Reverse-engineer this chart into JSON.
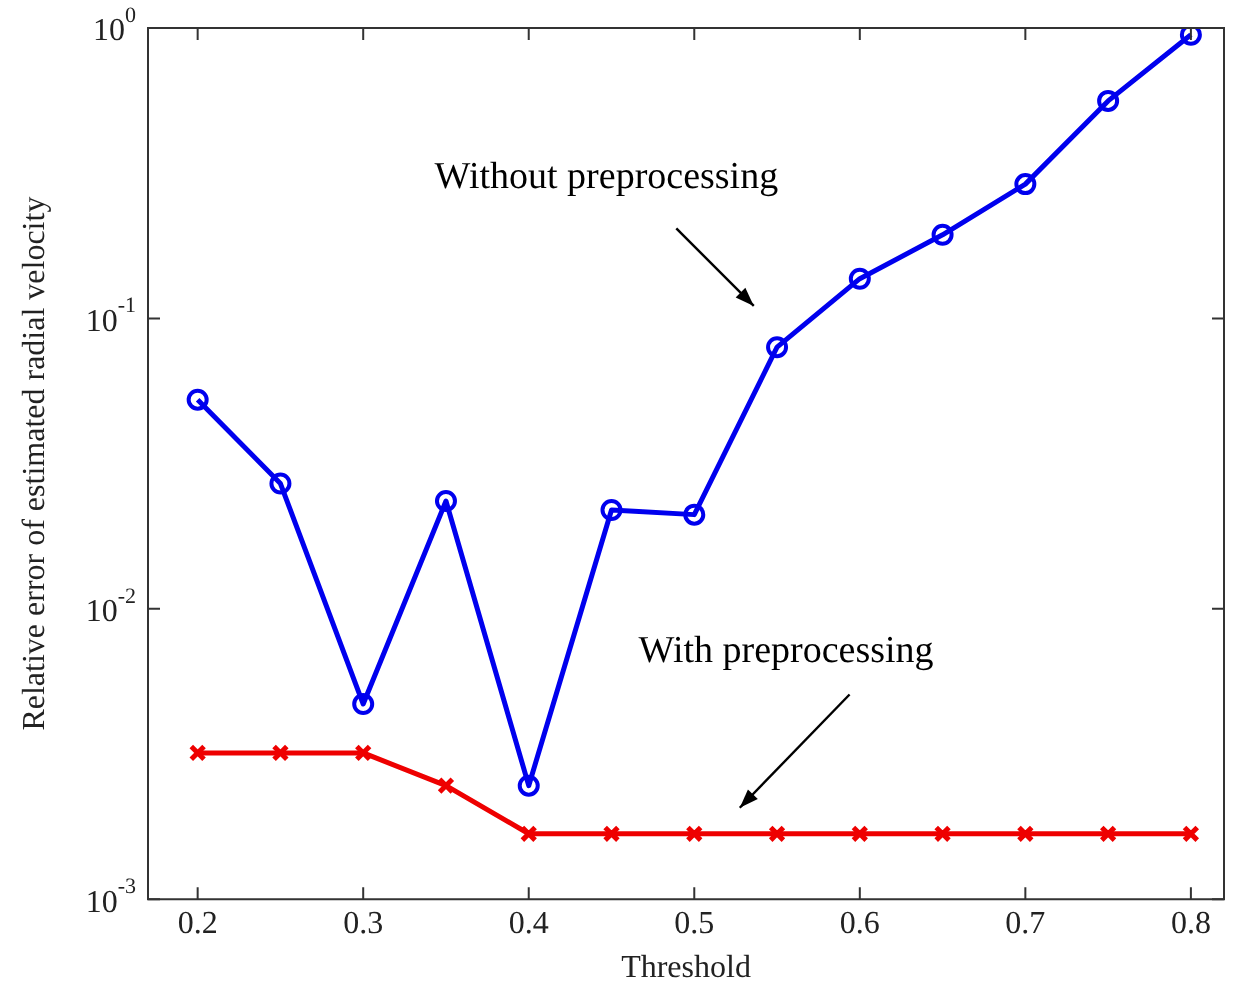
{
  "chart_data": {
    "type": "line",
    "xlabel": "Threshold",
    "ylabel": "Relative error of estimated radial velocity",
    "x": [
      0.2,
      0.25,
      0.3,
      0.35,
      0.4,
      0.45,
      0.5,
      0.55,
      0.6,
      0.65,
      0.7,
      0.75,
      0.8
    ],
    "series": [
      {
        "color": "#0000ee",
        "marker": "circle",
        "values": [
          0.0525,
          0.027,
          0.0047,
          0.0235,
          0.00246,
          0.0219,
          0.0211,
          0.0796,
          0.137,
          0.194,
          0.29,
          0.561,
          0.948
        ]
      },
      {
        "color": "#ee0000",
        "marker": "cross",
        "values": [
          0.00319,
          0.00319,
          0.00319,
          0.00246,
          0.00168,
          0.00168,
          0.00168,
          0.00168,
          0.00168,
          0.00168,
          0.00168,
          0.00168,
          0.00168
        ]
      }
    ],
    "log": "y",
    "xlim": [
      0.17,
      0.82
    ],
    "xticks": [
      0.2,
      0.3,
      0.4,
      0.5,
      0.6,
      0.7,
      0.8
    ],
    "ylim": [
      0.001,
      1
    ],
    "yticks": [
      {
        "value": 0.001,
        "label": "10$^{-3}$"
      },
      {
        "value": 0.01,
        "label": "10$^{-2}$"
      },
      {
        "value": 0.1,
        "label": "10$^{-1}$"
      },
      {
        "value": 1,
        "label": "10$^{0}$"
      }
    ],
    "grid": false,
    "legend": false,
    "line_style": "solid",
    "annotations": [
      "Without preprocessing",
      "With preprocessing"
    ]
  }
}
